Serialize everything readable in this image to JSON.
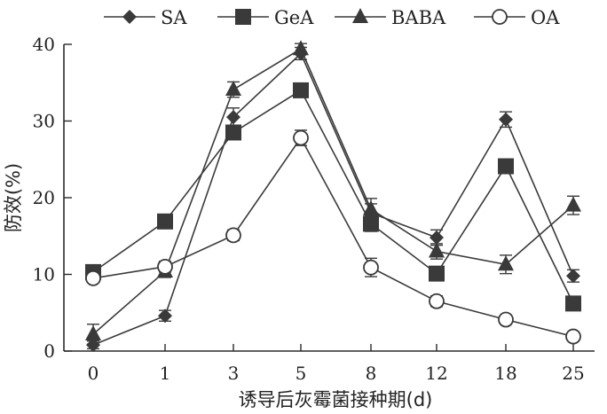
{
  "chart_data": {
    "type": "line",
    "xlabel": "诱导后灰霉菌接种期(d)",
    "ylabel": "防效(%)",
    "ylim": [
      0,
      40
    ],
    "yticks": [
      0,
      10,
      20,
      30,
      40
    ],
    "categories": [
      "0",
      "1",
      "3",
      "5",
      "8",
      "12",
      "18",
      "25"
    ],
    "series": [
      {
        "name": "SA",
        "marker": "diamond",
        "values": [
          0.8,
          4.6,
          30.5,
          38.8,
          18.0,
          14.8,
          30.2,
          9.8
        ],
        "errors": [
          0.5,
          0.7,
          1.2,
          0.8,
          1.2,
          1.0,
          1.0,
          0.8
        ]
      },
      {
        "name": "GeA",
        "marker": "square",
        "values": [
          10.3,
          16.9,
          28.5,
          34.0,
          16.6,
          10.1,
          24.1,
          6.2
        ],
        "errors": [
          0.5,
          0.6,
          0.8,
          0.8,
          1.0,
          0.6,
          0.8,
          0.5
        ]
      },
      {
        "name": "BABA",
        "marker": "triangle",
        "values": [
          2.2,
          10.4,
          34.1,
          39.4,
          18.5,
          13.0,
          11.3,
          19.0
        ],
        "errors": [
          1.3,
          0.8,
          1.0,
          0.7,
          1.4,
          1.0,
          1.2,
          1.2
        ]
      },
      {
        "name": "OA",
        "marker": "circle",
        "values": [
          9.5,
          11.0,
          15.1,
          27.8,
          10.9,
          6.5,
          4.1,
          1.9
        ],
        "errors": [
          0.5,
          0.7,
          0.7,
          1.0,
          1.2,
          0.7,
          0.6,
          0.5
        ]
      }
    ],
    "legend": "top",
    "grid": false
  }
}
